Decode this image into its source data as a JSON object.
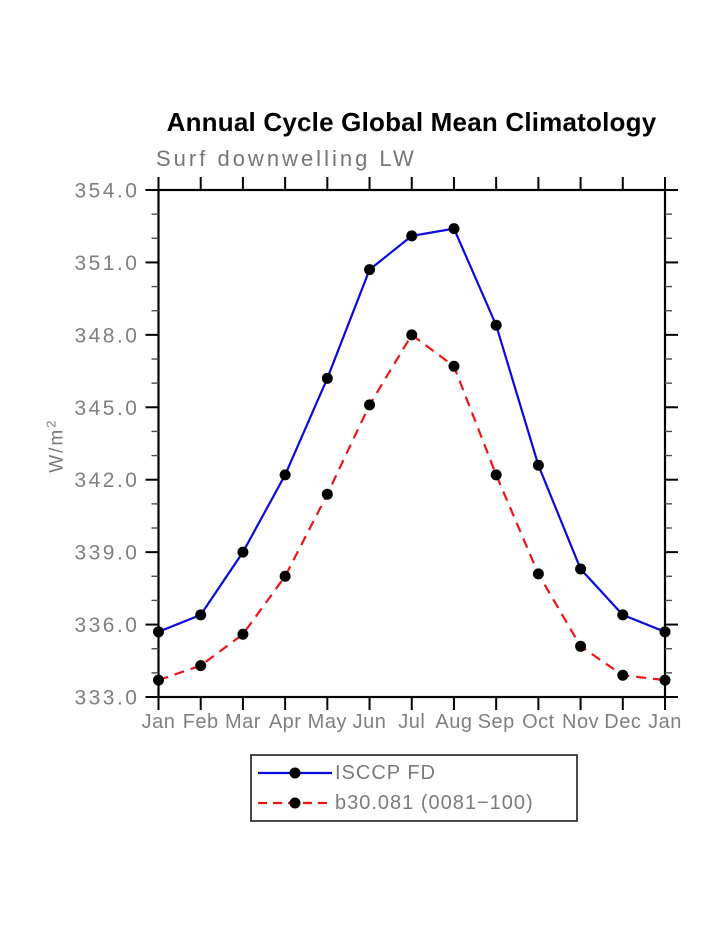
{
  "header": {
    "title": "Annual Cycle Global Mean Climatology",
    "subtitle": "Surf downwelling LW"
  },
  "ui": {
    "ylabel_main": "W/m",
    "ylabel_sup": "2"
  },
  "chart_data": {
    "type": "line",
    "title": "Annual Cycle Global Mean Climatology",
    "subtitle": "Surf downwelling LW",
    "xlabel": "",
    "ylabel": "W/m²",
    "x_categories": [
      "Jan",
      "Feb",
      "Mar",
      "Apr",
      "May",
      "Jun",
      "Jul",
      "Aug",
      "Sep",
      "Oct",
      "Nov",
      "Dec",
      "Jan"
    ],
    "ylim": [
      333.0,
      354.0
    ],
    "y_major_ticks": [
      333,
      336,
      339,
      342,
      345,
      348,
      351,
      354
    ],
    "y_tick_labels": [
      "333.0",
      "336.0",
      "339.0",
      "342.0",
      "345.0",
      "348.0",
      "351.0",
      "354.0"
    ],
    "y_minor_step": 1,
    "grid": false,
    "legend_position": "bottom-center",
    "series": [
      {
        "name": "ISCCP FD",
        "color": "#0a0ae0",
        "style": "solid",
        "marker": "circle",
        "marker_color": "#000000",
        "values": [
          335.7,
          336.4,
          339.0,
          342.2,
          346.2,
          350.7,
          352.1,
          352.4,
          348.4,
          342.6,
          338.3,
          336.4,
          335.7
        ]
      },
      {
        "name": "b30.081 (0081−100)",
        "color": "#ee1414",
        "style": "dashed",
        "marker": "circle",
        "marker_color": "#000000",
        "values": [
          333.7,
          334.3,
          335.6,
          338.0,
          341.4,
          345.1,
          348.0,
          346.7,
          342.2,
          338.1,
          335.1,
          333.9,
          333.7
        ]
      }
    ]
  },
  "legend": {
    "items": [
      {
        "label": "ISCCP FD",
        "line": "solid",
        "color": "#0a0ae0"
      },
      {
        "label": "b30.081 (0081−100)",
        "line": "dashed",
        "color": "#ee1414"
      }
    ]
  },
  "colors": {
    "axis": "#000000",
    "tick_labels": "#7f7f7f",
    "title": "#000000",
    "subtitle": "#767676"
  }
}
